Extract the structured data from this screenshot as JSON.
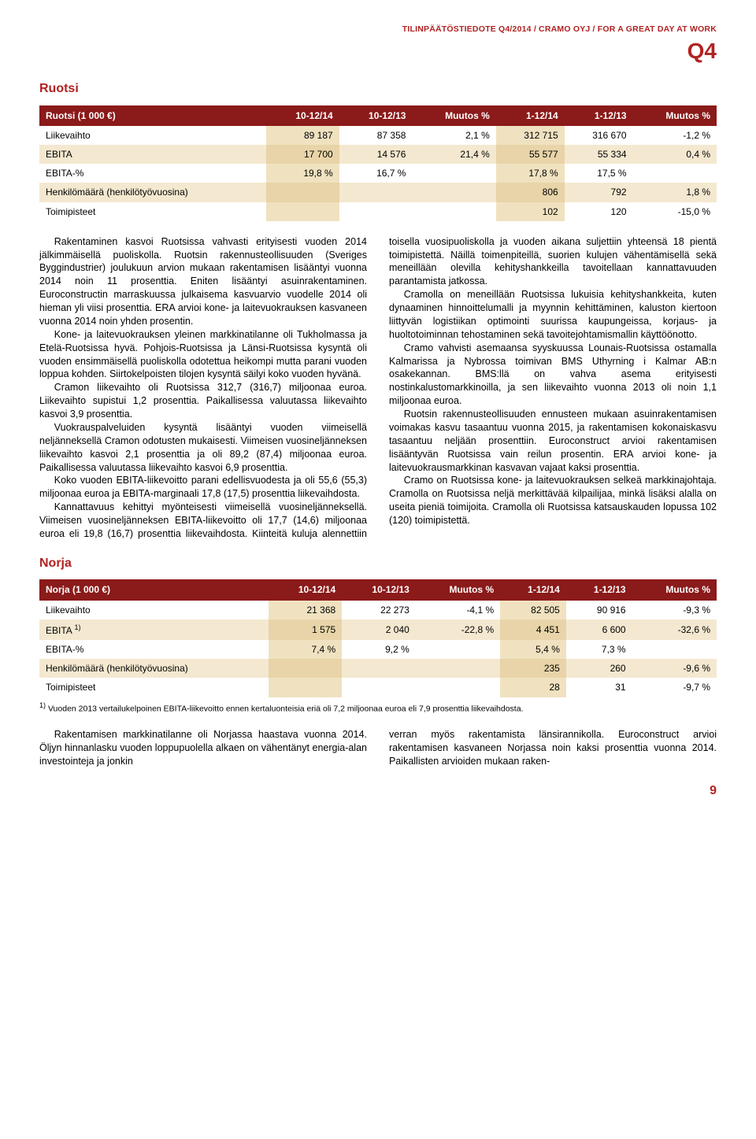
{
  "header": {
    "line": "TILINPÄÄTÖSTIEDOTE Q4/2014 / CRAMO OYJ / FOR A GREAT DAY AT WORK",
    "q4": "Q4"
  },
  "ruotsi": {
    "title": "Ruotsi",
    "table": {
      "columns": [
        "Ruotsi (1 000 €)",
        "10-12/14",
        "10-12/13",
        "Muutos %",
        "1-12/14",
        "1-12/13",
        "Muutos %"
      ],
      "rows": [
        [
          "Liikevaihto",
          "89 187",
          "87 358",
          "2,1 %",
          "312 715",
          "316 670",
          "-1,2 %"
        ],
        [
          "EBITA",
          "17 700",
          "14 576",
          "21,4 %",
          "55 577",
          "55 334",
          "0,4 %"
        ],
        [
          "EBITA-%",
          "19,8 %",
          "16,7 %",
          "",
          "17,8 %",
          "17,5 %",
          ""
        ],
        [
          "Henkilömäärä (henkilötyövuosina)",
          "",
          "",
          "",
          "806",
          "792",
          "1,8 %"
        ],
        [
          "Toimipisteet",
          "",
          "",
          "",
          "102",
          "120",
          "-15,0 %"
        ]
      ]
    },
    "body": {
      "p1": "Rakentaminen kasvoi Ruotsissa vahvasti erityisesti vuoden 2014 jälkimmäisellä puoliskolla. Ruotsin rakennusteollisuuden (Sveriges Byggindustrier) joulukuun arvion mukaan rakentamisen lisääntyi vuonna 2014 noin 11 prosenttia. Eniten lisääntyi asuinrakentaminen. Euroconstructin marraskuussa julkaisema kasvuarvio vuodelle 2014 oli hieman yli viisi prosenttia. ERA arvioi kone- ja laitevuokrauksen kasvaneen vuonna 2014 noin yhden prosentin.",
      "p2": "Kone- ja laitevuokrauksen yleinen markkinatilanne oli Tukholmassa ja Etelä-Ruotsissa hyvä. Pohjois-Ruotsissa ja Länsi-Ruotsissa kysyntä oli vuoden ensimmäisellä puoliskolla odotettua heikompi mutta parani vuoden loppua kohden. Siirtokelpoisten tilojen kysyntä säilyi koko vuoden hyvänä.",
      "p3": "Cramon liikevaihto oli Ruotsissa 312,7 (316,7) miljoonaa euroa. Liikevaihto supistui 1,2 prosenttia. Paikallisessa valuutassa liikevaihto kasvoi 3,9 prosenttia.",
      "p4": "Vuokrauspalveluiden kysyntä lisääntyi vuoden viimeisellä neljänneksellä Cramon odotusten mukaisesti. Viimeisen vuosineljänneksen liikevaihto kasvoi 2,1 prosenttia ja oli 89,2 (87,4) miljoonaa euroa. Paikallisessa valuutassa liikevaihto kasvoi 6,9 prosenttia.",
      "p5": "Koko vuoden EBITA-liikevoitto parani edellisvuodesta ja oli 55,6 (55,3) miljoonaa euroa ja EBITA-marginaali 17,8 (17,5) prosenttia liikevaihdosta.",
      "p6": "Kannattavuus kehittyi myönteisesti viimeisellä vuosineljänneksellä. Viimeisen vuosineljänneksen EBITA-liikevoitto oli 17,7 (14,6) miljoonaa euroa eli 19,8 (16,7) prosenttia liikevaihdosta. Kiinteitä kuluja alennettiin toisella vuosipuoliskolla ja vuoden aikana suljettiin yhteensä 18 pientä toimipistettä. Näillä toimenpiteillä, suorien kulujen vähentämisellä sekä meneillään olevilla kehityshankkeilla tavoitellaan kannattavuuden parantamista jatkossa.",
      "p7": "Cramolla on meneillään Ruotsissa lukuisia kehityshankkeita, kuten dynaaminen hinnoittelumalli ja myynnin kehittäminen, kaluston kiertoon liittyvän logistiikan optimointi suurissa kaupungeissa, korjaus- ja huoltotoiminnan tehostaminen sekä tavoitejohtamismallin käyttöönotto.",
      "p8": "Cramo vahvisti asemaansa syyskuussa Lounais-Ruotsissa ostamalla Kalmarissa ja Nybrossa toimivan BMS Uthyrning i Kalmar AB:n osakekannan. BMS:llä on vahva asema erityisesti nostinkalustomarkkinoilla, ja sen liikevaihto vuonna 2013 oli noin 1,1 miljoonaa euroa.",
      "p9": "Ruotsin rakennusteollisuuden ennusteen mukaan asuinrakentamisen voimakas kasvu tasaantuu vuonna 2015, ja rakentamisen kokonaiskasvu tasaantuu neljään prosenttiin. Euroconstruct arvioi rakentamisen lisääntyvän Ruotsissa vain reilun prosentin. ERA arvioi kone- ja laitevuokrausmarkkinan kasvavan vajaat kaksi prosenttia.",
      "p10": "Cramo on Ruotsissa kone- ja laitevuokrauksen selkeä markkinajohtaja. Cramolla on Ruotsissa neljä merkittävää kilpailijaa, minkä lisäksi alalla on useita pieniä toimijoita. Cramolla oli Ruotsissa katsauskauden lopussa 102 (120) toimipistettä."
    }
  },
  "norja": {
    "title": "Norja",
    "table": {
      "columns": [
        "Norja (1 000 €)",
        "10-12/14",
        "10-12/13",
        "Muutos %",
        "1-12/14",
        "1-12/13",
        "Muutos %"
      ],
      "rows": [
        [
          "Liikevaihto",
          "21 368",
          "22 273",
          "-4,1 %",
          "82 505",
          "90 916",
          "-9,3 %"
        ],
        [
          "EBITA 1)",
          "1 575",
          "2 040",
          "-22,8 %",
          "4 451",
          "6 600",
          "-32,6 %"
        ],
        [
          "EBITA-%",
          "7,4 %",
          "9,2 %",
          "",
          "5,4 %",
          "7,3 %",
          ""
        ],
        [
          "Henkilömäärä (henkilötyövuosina)",
          "",
          "",
          "",
          "235",
          "260",
          "-9,6 %"
        ],
        [
          "Toimipisteet",
          "",
          "",
          "",
          "28",
          "31",
          "-9,7 %"
        ]
      ]
    },
    "footnote": "1) Vuoden 2013 vertailukelpoinen EBITA-liikevoitto ennen kertaluonteisia eriä oli 7,2 miljoonaa euroa eli 7,9 prosenttia liikevaihdosta.",
    "body": {
      "p1": "Rakentamisen markkinatilanne oli Norjassa haastava vuonna 2014. Öljyn hinnanlasku vuoden loppupuolella alkaen on vähentänyt energia-alan investointeja ja jonkin",
      "p2": "verran myös rakentamista länsirannikolla. Euroconstruct arvioi rakentamisen kasvaneen Norjassa noin kaksi prosenttia vuonna 2014. Paikallisten arvioiden mukaan raken-"
    }
  },
  "page_number": "9",
  "styling": {
    "header_red": "#b22222",
    "table_header_bg": "#8b1a1a",
    "table_header_fg": "#ffffff",
    "row_even_bg": "#f4e8d0",
    "row_odd_bg": "#ffffff",
    "col_highlight_bg": "#e8d4a8",
    "body_font_size": 12.5,
    "title_font_size": 16,
    "q4_font_size": 28
  }
}
